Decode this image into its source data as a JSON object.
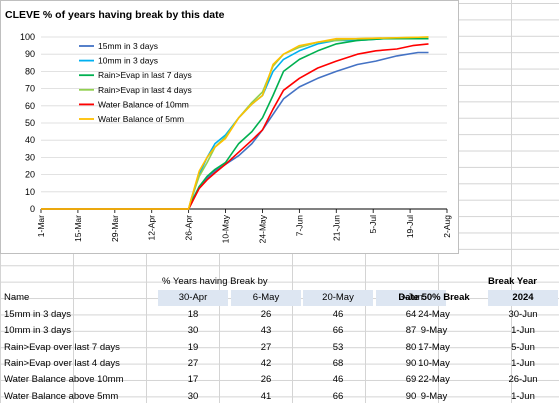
{
  "chart": {
    "title": "CLEVE % of years having break by this date",
    "y_ticks": [
      "0",
      "10",
      "20",
      "30",
      "40",
      "50",
      "60",
      "70",
      "80",
      "90",
      "100"
    ],
    "x_ticks": [
      "1-Mar",
      "15-Mar",
      "29-Mar",
      "12-Apr",
      "26-Apr",
      "10-May",
      "24-May",
      "7-Jun",
      "21-Jun",
      "5-Jul",
      "19-Jul",
      "2-Aug"
    ],
    "legend": [
      {
        "name": "15mm in 3 days",
        "color": "#4472c4"
      },
      {
        "name": "10mm in 3 days",
        "color": "#00b0f0"
      },
      {
        "name": "Rain>Evap in last 7 days",
        "color": "#00b050"
      },
      {
        "name": "Rain>Evap in last 4 days",
        "color": "#92d050"
      },
      {
        "name": "Water Balance of 10mm",
        "color": "#ff0000"
      },
      {
        "name": "Water Balance of 5mm",
        "color": "#ffc000"
      }
    ]
  },
  "chart_data": {
    "type": "line",
    "title": "CLEVE % of years having break by this date",
    "xlabel": "",
    "ylabel": "",
    "ylim": [
      0,
      100
    ],
    "x_unit": "day-of-season (1-Mar = 0)",
    "series": [
      {
        "name": "15mm in 3 days",
        "color": "#4472c4",
        "points": [
          [
            0,
            0
          ],
          [
            56,
            0
          ],
          [
            57,
            3
          ],
          [
            60,
            13
          ],
          [
            63,
            18
          ],
          [
            66,
            22
          ],
          [
            70,
            26
          ],
          [
            75,
            31
          ],
          [
            80,
            38
          ],
          [
            84,
            46
          ],
          [
            88,
            55
          ],
          [
            92,
            64
          ],
          [
            98,
            71
          ],
          [
            105,
            76
          ],
          [
            112,
            80
          ],
          [
            120,
            84
          ],
          [
            127,
            86
          ],
          [
            135,
            89
          ],
          [
            143,
            91
          ],
          [
            147,
            91
          ]
        ]
      },
      {
        "name": "10mm in 3 days",
        "color": "#00b0f0",
        "points": [
          [
            0,
            0
          ],
          [
            56,
            0
          ],
          [
            57,
            5
          ],
          [
            60,
            20
          ],
          [
            63,
            30
          ],
          [
            66,
            38
          ],
          [
            70,
            43
          ],
          [
            75,
            53
          ],
          [
            80,
            61
          ],
          [
            84,
            66
          ],
          [
            88,
            80
          ],
          [
            92,
            87
          ],
          [
            98,
            92
          ],
          [
            105,
            96
          ],
          [
            112,
            98
          ],
          [
            120,
            98
          ],
          [
            130,
            99
          ],
          [
            147,
            99
          ]
        ]
      },
      {
        "name": "Rain>Evap in last 7 days",
        "color": "#00b050",
        "points": [
          [
            0,
            0
          ],
          [
            56,
            0
          ],
          [
            57,
            4
          ],
          [
            60,
            13
          ],
          [
            63,
            19
          ],
          [
            66,
            23
          ],
          [
            70,
            27
          ],
          [
            75,
            38
          ],
          [
            80,
            45
          ],
          [
            84,
            53
          ],
          [
            88,
            66
          ],
          [
            92,
            80
          ],
          [
            98,
            87
          ],
          [
            105,
            92
          ],
          [
            112,
            96
          ],
          [
            120,
            98
          ],
          [
            130,
            99
          ],
          [
            147,
            99
          ]
        ]
      },
      {
        "name": "Rain>Evap in last 4 days",
        "color": "#92d050",
        "points": [
          [
            0,
            0
          ],
          [
            56,
            0
          ],
          [
            57,
            6
          ],
          [
            60,
            19
          ],
          [
            63,
            27
          ],
          [
            66,
            36
          ],
          [
            70,
            42
          ],
          [
            75,
            53
          ],
          [
            80,
            62
          ],
          [
            84,
            68
          ],
          [
            88,
            83
          ],
          [
            92,
            90
          ],
          [
            98,
            94
          ],
          [
            105,
            97
          ],
          [
            112,
            98
          ],
          [
            120,
            99
          ],
          [
            147,
            100
          ]
        ]
      },
      {
        "name": "Water Balance of 10mm",
        "color": "#ff0000",
        "points": [
          [
            0,
            0
          ],
          [
            56,
            0
          ],
          [
            57,
            3
          ],
          [
            60,
            12
          ],
          [
            63,
            17
          ],
          [
            66,
            21
          ],
          [
            70,
            26
          ],
          [
            75,
            33
          ],
          [
            80,
            40
          ],
          [
            84,
            46
          ],
          [
            88,
            58
          ],
          [
            92,
            69
          ],
          [
            98,
            76
          ],
          [
            105,
            82
          ],
          [
            112,
            86
          ],
          [
            120,
            90
          ],
          [
            127,
            92
          ],
          [
            135,
            93
          ],
          [
            141,
            95
          ],
          [
            147,
            96
          ]
        ]
      },
      {
        "name": "Water Balance of 5mm",
        "color": "#ffc000",
        "points": [
          [
            0,
            0
          ],
          [
            56,
            0
          ],
          [
            57,
            6
          ],
          [
            60,
            22
          ],
          [
            63,
            30
          ],
          [
            66,
            36
          ],
          [
            70,
            41
          ],
          [
            75,
            53
          ],
          [
            80,
            61
          ],
          [
            84,
            66
          ],
          [
            88,
            84
          ],
          [
            92,
            90
          ],
          [
            98,
            95
          ],
          [
            105,
            97
          ],
          [
            112,
            99
          ],
          [
            120,
            99
          ],
          [
            147,
            100
          ]
        ]
      }
    ]
  },
  "table": {
    "header_pct": "% Years having Break by",
    "header_break_year": "Break Year",
    "col_name": "Name",
    "cols": [
      "30-Apr",
      "6-May",
      "20-May",
      "3-Jun"
    ],
    "col_50": "Date 50% Break",
    "col_year": "2024",
    "rows": [
      {
        "name": "15mm in 3 days",
        "v": [
          "18",
          "26",
          "46",
          "64"
        ],
        "d50": "24-May",
        "yr": "30-Jun"
      },
      {
        "name": "10mm in 3 days",
        "v": [
          "30",
          "43",
          "66",
          "87"
        ],
        "d50": "9-May",
        "yr": "1-Jun"
      },
      {
        "name": "Rain>Evap over last 7 days",
        "v": [
          "19",
          "27",
          "53",
          "80"
        ],
        "d50": "17-May",
        "yr": "5-Jun"
      },
      {
        "name": "Rain>Evap over last 4 days",
        "v": [
          "27",
          "42",
          "68",
          "90"
        ],
        "d50": "10-May",
        "yr": "1-Jun"
      },
      {
        "name": "Water Balance above 10mm",
        "v": [
          "17",
          "26",
          "46",
          "69"
        ],
        "d50": "22-May",
        "yr": "26-Jun"
      },
      {
        "name": "Water Balance above 5mm",
        "v": [
          "30",
          "41",
          "66",
          "90"
        ],
        "d50": "9-May",
        "yr": "1-Jun"
      }
    ]
  }
}
